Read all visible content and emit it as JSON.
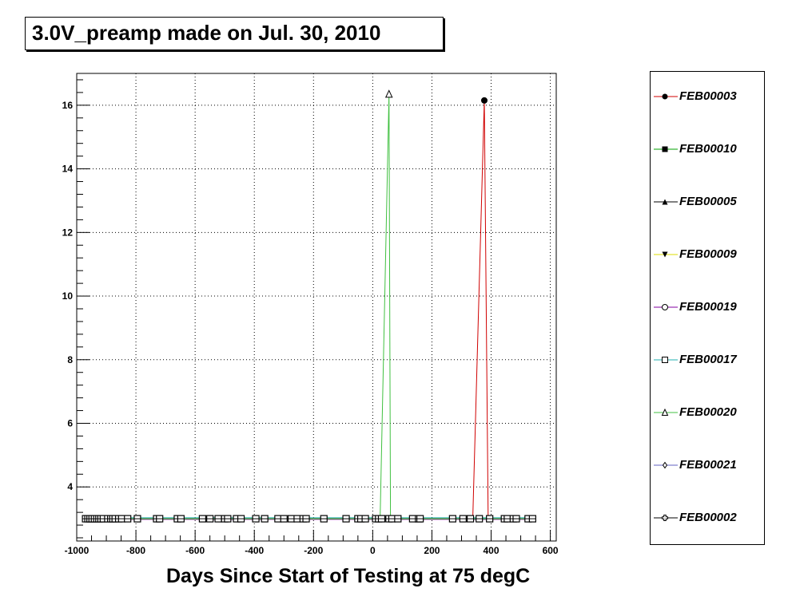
{
  "title": "3.0V_preamp made on Jul. 30, 2010",
  "chart_data": {
    "type": "line",
    "title": "3.0V_preamp made on Jul. 30, 2010",
    "xlabel": "Days Since Start of Testing at 75 degC",
    "ylabel": "",
    "xlim": [
      -1000,
      620
    ],
    "ylim": [
      2.3,
      17.0
    ],
    "x_ticks": [
      -1000,
      -800,
      -600,
      -400,
      -200,
      0,
      200,
      400,
      600
    ],
    "y_ticks": [
      4,
      6,
      8,
      10,
      12,
      14,
      16
    ],
    "x_tick_labels": [
      "-1000",
      "-800",
      "-600",
      "-400",
      "-200",
      "0",
      "200",
      "400",
      "600"
    ],
    "y_tick_labels": [
      "4",
      "6",
      "8",
      "10",
      "12",
      "14",
      "16"
    ],
    "grid": true,
    "legend_position": "right",
    "baseline_x": [
      -970,
      -962,
      -955,
      -948,
      -940,
      -932,
      -925,
      -918,
      -910,
      -895,
      -885,
      -878,
      -870,
      -858,
      -848,
      -828,
      -795,
      -730,
      -720,
      -660,
      -648,
      -575,
      -550,
      -522,
      -500,
      -490,
      -460,
      -445,
      -395,
      -365,
      -320,
      -300,
      -275,
      -255,
      -235,
      -225,
      -165,
      -90,
      -50,
      -40,
      -25,
      10,
      20,
      30,
      55,
      65,
      85,
      135,
      155,
      160,
      270,
      305,
      330,
      360,
      395,
      445,
      455,
      475,
      485,
      525,
      540
    ],
    "series": [
      {
        "name": "FEB00003",
        "color": "#d00000",
        "marker": "filled-circle",
        "peak_x": 377,
        "peak_y": 16.15,
        "rise_x": 338,
        "fall_x": 390,
        "baseline_y": 3.0
      },
      {
        "name": "FEB00010",
        "color": "#00a000",
        "marker": "filled-square",
        "baseline_y": 3.0
      },
      {
        "name": "FEB00005",
        "color": "#000000",
        "marker": "filled-triangle-up",
        "baseline_y": 3.0
      },
      {
        "name": "FEB00009",
        "color": "#dddd00",
        "marker": "filled-triangle-down",
        "baseline_y": 3.0
      },
      {
        "name": "FEB00019",
        "color": "#8000a0",
        "marker": "open-circle",
        "baseline_y": 2.98
      },
      {
        "name": "FEB00017",
        "color": "#20b0b0",
        "marker": "open-square",
        "baseline_y": 3.03
      },
      {
        "name": "FEB00020",
        "color": "#40c040",
        "marker": "open-triangle",
        "peak_x": 55,
        "peak_y": 16.35,
        "rise_x": 25,
        "fall_x": 60,
        "baseline_y": 3.0
      },
      {
        "name": "FEB00021",
        "color": "#6060c0",
        "marker": "open-diamond",
        "baseline_y": 3.0
      },
      {
        "name": "FEB00002",
        "color": "#000000",
        "marker": "open-cross",
        "baseline_y": 3.0
      }
    ]
  }
}
